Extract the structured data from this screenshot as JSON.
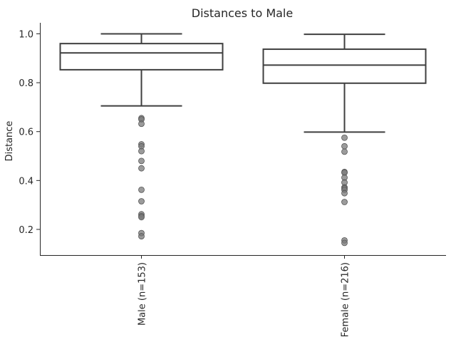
{
  "chart_data": {
    "type": "box",
    "title": "Distances to Male",
    "ylabel": "Distance",
    "xlabel": "",
    "ylim": [
      0.095,
      1.045
    ],
    "yticks": [
      0.2,
      0.4,
      0.6,
      0.8,
      1.0
    ],
    "ytick_labels": [
      "0.2",
      "0.4",
      "0.6",
      "0.8",
      "1.0"
    ],
    "grid": false,
    "categories": [
      "Male (n=153)",
      "Female (n=216)"
    ],
    "boxes": [
      {
        "category": "Male (n=153)",
        "whisker_low": 0.705,
        "q1": 0.853,
        "median": 0.922,
        "q3": 0.96,
        "whisker_high": 1.0,
        "outliers": [
          0.655,
          0.65,
          0.632,
          0.548,
          0.54,
          0.52,
          0.48,
          0.45,
          0.362,
          0.315,
          0.262,
          0.255,
          0.25,
          0.185,
          0.172
        ]
      },
      {
        "category": "Female (n=216)",
        "whisker_low": 0.598,
        "q1": 0.798,
        "median": 0.872,
        "q3": 0.937,
        "whisker_high": 0.998,
        "outliers": [
          0.575,
          0.54,
          0.518,
          0.435,
          0.432,
          0.412,
          0.392,
          0.372,
          0.368,
          0.362,
          0.348,
          0.312,
          0.155,
          0.145
        ]
      }
    ]
  }
}
